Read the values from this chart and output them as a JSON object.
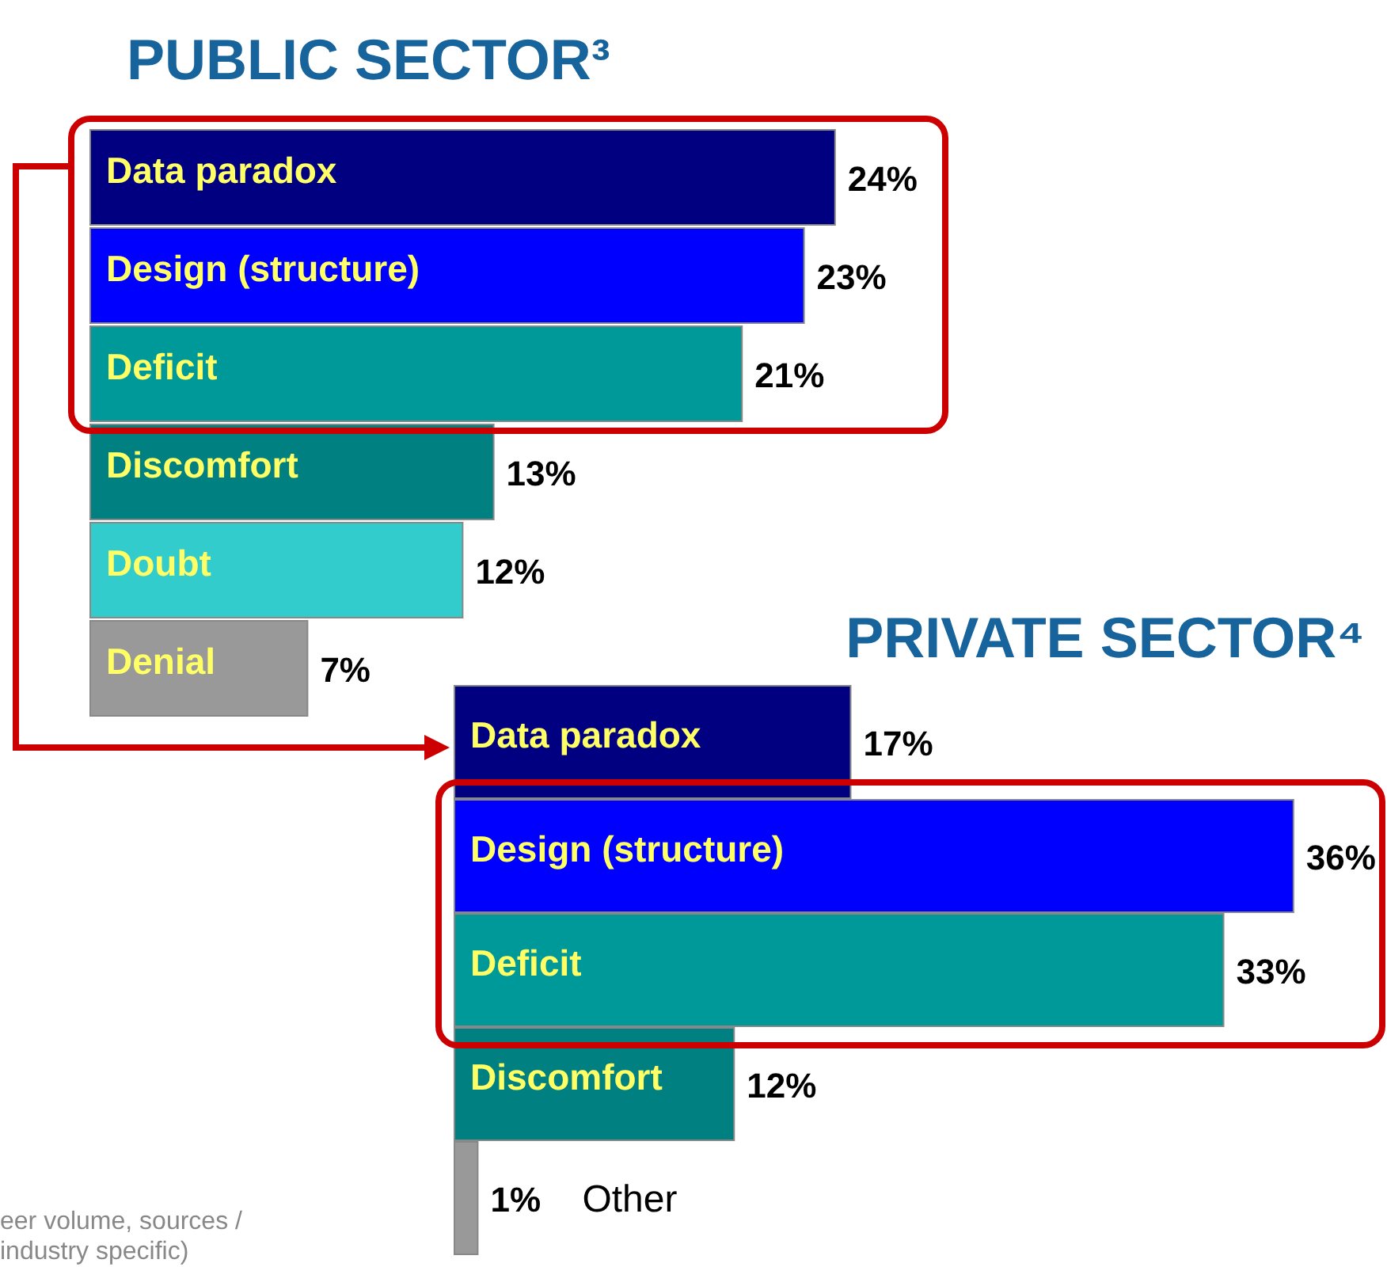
{
  "chart_data": [
    {
      "type": "bar",
      "orientation": "horizontal",
      "title": "PUBLIC SECTOR³",
      "categories": [
        "Data paradox",
        "Design (structure)",
        "Deficit",
        "Discomfort",
        "Doubt",
        "Denial"
      ],
      "values": [
        24,
        23,
        21,
        13,
        12,
        7
      ],
      "value_labels": [
        "24%",
        "23%",
        "21%",
        "13%",
        "12%",
        "7%"
      ],
      "colors": [
        "#000080",
        "#0000ff",
        "#009999",
        "#008080",
        "#33cccc",
        "#999999"
      ],
      "annotations": [
        "eer volume, sources /",
        "industry specific)"
      ]
    },
    {
      "type": "bar",
      "orientation": "horizontal",
      "title": "PRIVATE SECTOR⁴",
      "categories": [
        "Data paradox",
        "Design (structure)",
        "Deficit",
        "Discomfort",
        "Other"
      ],
      "values": [
        17,
        36,
        33,
        12,
        1
      ],
      "value_labels": [
        "17%",
        "36%",
        "33%",
        "12%",
        "1%"
      ],
      "colors": [
        "#000080",
        "#0000ff",
        "#009999",
        "#008080",
        "#999999"
      ]
    }
  ]
}
